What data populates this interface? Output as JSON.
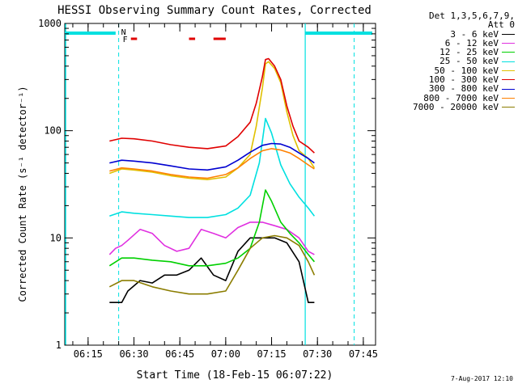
{
  "chart_data": {
    "type": "line",
    "title": "HESSI Observing Summary Count Rates, Corrected",
    "xlabel": "Start Time (18-Feb-15 06:07:22)",
    "ylabel": "Corrected Count Rate (s⁻¹ detector⁻¹)",
    "yscale": "log",
    "ylim": [
      1,
      1000
    ],
    "xlim": [
      "06:07:22",
      "07:49:00"
    ],
    "xticks": [
      "06:15",
      "06:30",
      "06:45",
      "07:00",
      "07:15",
      "07:30",
      "07:45"
    ],
    "yticks": [
      "1",
      "10",
      "100",
      "1000"
    ],
    "legend_header": [
      "Det 1,3,5,6,7,9,",
      "Att 0"
    ],
    "legend_position": "right",
    "flags": {
      "night_label": "N",
      "flare_label": "F"
    },
    "series": [
      {
        "name": "3 - 6 keV",
        "color": "#000000",
        "times": [
          "06:22",
          "06:24",
          "06:26",
          "06:28",
          "06:32",
          "06:36",
          "06:40",
          "06:44",
          "06:48",
          "06:52",
          "06:56",
          "07:00",
          "07:04",
          "07:08",
          "07:12",
          "07:16",
          "07:20",
          "07:24",
          "07:27",
          "07:29"
        ],
        "values": [
          2.5,
          2.5,
          2.5,
          3.2,
          4.0,
          3.8,
          4.5,
          4.5,
          5.0,
          6.5,
          4.5,
          4.0,
          7.5,
          10.0,
          10.0,
          10.0,
          9.0,
          6.0,
          2.5,
          2.5
        ]
      },
      {
        "name": "6 - 12 keV",
        "color": "#e030e0",
        "times": [
          "06:22",
          "06:24",
          "06:26",
          "06:28",
          "06:32",
          "06:36",
          "06:40",
          "06:44",
          "06:48",
          "06:52",
          "06:56",
          "07:00",
          "07:04",
          "07:08",
          "07:12",
          "07:16",
          "07:20",
          "07:24",
          "07:27",
          "07:29"
        ],
        "values": [
          7.0,
          8.0,
          8.5,
          9.5,
          12.0,
          11.0,
          8.5,
          7.5,
          8.0,
          12.0,
          11.0,
          10.0,
          12.5,
          14.0,
          14.0,
          13.0,
          12.0,
          10.0,
          7.5,
          7.0
        ]
      },
      {
        "name": "12 - 25 keV",
        "color": "#00d000",
        "times": [
          "06:22",
          "06:26",
          "06:30",
          "06:36",
          "06:42",
          "06:48",
          "06:54",
          "07:00",
          "07:04",
          "07:08",
          "07:11",
          "07:13",
          "07:15",
          "07:18",
          "07:21",
          "07:24",
          "07:27",
          "07:29"
        ],
        "values": [
          5.5,
          6.5,
          6.5,
          6.2,
          6.0,
          5.5,
          5.5,
          5.8,
          6.5,
          8.0,
          14.0,
          28.0,
          22.0,
          14.0,
          11.0,
          9.0,
          7.0,
          6.0
        ]
      },
      {
        "name": "25 - 50 keV",
        "color": "#00e0e0",
        "times": [
          "06:22",
          "06:26",
          "06:30",
          "06:36",
          "06:42",
          "06:48",
          "06:54",
          "07:00",
          "07:04",
          "07:08",
          "07:11",
          "07:13",
          "07:15",
          "07:18",
          "07:21",
          "07:24",
          "07:27",
          "07:29"
        ],
        "values": [
          16.0,
          17.5,
          17.0,
          16.5,
          16.0,
          15.5,
          15.5,
          16.5,
          19.0,
          25.0,
          50.0,
          130.0,
          95.0,
          48.0,
          32.0,
          24.0,
          19.0,
          16.0
        ]
      },
      {
        "name": "50 - 100 keV",
        "color": "#e0c000",
        "times": [
          "06:22",
          "06:26",
          "06:30",
          "06:36",
          "06:42",
          "06:48",
          "06:54",
          "07:00",
          "07:04",
          "07:08",
          "07:10",
          "07:12",
          "07:13",
          "07:14",
          "07:16",
          "07:18",
          "07:20",
          "07:22",
          "07:24",
          "07:27",
          "07:29"
        ],
        "values": [
          40.0,
          44.0,
          43.0,
          41.0,
          38.0,
          36.0,
          35.0,
          37.0,
          45.0,
          60.0,
          110.0,
          250.0,
          420.0,
          440.0,
          380.0,
          280.0,
          150.0,
          90.0,
          65.0,
          55.0,
          45.0
        ]
      },
      {
        "name": "100 - 300 keV",
        "color": "#e00000",
        "times": [
          "06:22",
          "06:26",
          "06:30",
          "06:36",
          "06:42",
          "06:48",
          "06:54",
          "07:00",
          "07:04",
          "07:08",
          "07:10",
          "07:12",
          "07:13",
          "07:14",
          "07:16",
          "07:18",
          "07:20",
          "07:22",
          "07:24",
          "07:27",
          "07:29"
        ],
        "values": [
          80.0,
          85.0,
          84.0,
          80.0,
          74.0,
          70.0,
          68.0,
          72.0,
          88.0,
          120.0,
          180.0,
          320.0,
          460.0,
          470.0,
          400.0,
          300.0,
          170.0,
          110.0,
          80.0,
          70.0,
          62.0
        ]
      },
      {
        "name": "300 - 800 keV",
        "color": "#0000d0",
        "times": [
          "06:22",
          "06:26",
          "06:30",
          "06:36",
          "06:42",
          "06:48",
          "06:54",
          "07:00",
          "07:04",
          "07:08",
          "07:12",
          "07:15",
          "07:18",
          "07:21",
          "07:24",
          "07:27",
          "07:29"
        ],
        "values": [
          50.0,
          53.0,
          52.0,
          50.0,
          47.0,
          44.0,
          43.0,
          46.0,
          53.0,
          63.0,
          73.0,
          76.0,
          75.0,
          70.0,
          62.0,
          55.0,
          50.0
        ]
      },
      {
        "name": "800 - 7000 keV",
        "color": "#ff8000",
        "times": [
          "06:22",
          "06:26",
          "06:30",
          "06:36",
          "06:42",
          "06:48",
          "06:54",
          "07:00",
          "07:04",
          "07:08",
          "07:12",
          "07:15",
          "07:18",
          "07:21",
          "07:24",
          "07:27",
          "07:29"
        ],
        "values": [
          42.0,
          45.0,
          44.0,
          42.0,
          39.0,
          37.0,
          36.0,
          39.0,
          45.0,
          55.0,
          65.0,
          68.0,
          66.0,
          62.0,
          55.0,
          48.0,
          44.0
        ]
      },
      {
        "name": "7000 - 20000 keV",
        "color": "#8b7d00",
        "times": [
          "06:22",
          "06:26",
          "06:30",
          "06:36",
          "06:42",
          "06:48",
          "06:54",
          "07:00",
          "07:04",
          "07:08",
          "07:12",
          "07:16",
          "07:20",
          "07:24",
          "07:27",
          "07:29"
        ],
        "values": [
          3.5,
          4.0,
          4.0,
          3.5,
          3.2,
          3.0,
          3.0,
          3.2,
          5.0,
          8.0,
          10.0,
          10.5,
          10.0,
          8.5,
          6.0,
          4.5
        ]
      }
    ]
  }
}
